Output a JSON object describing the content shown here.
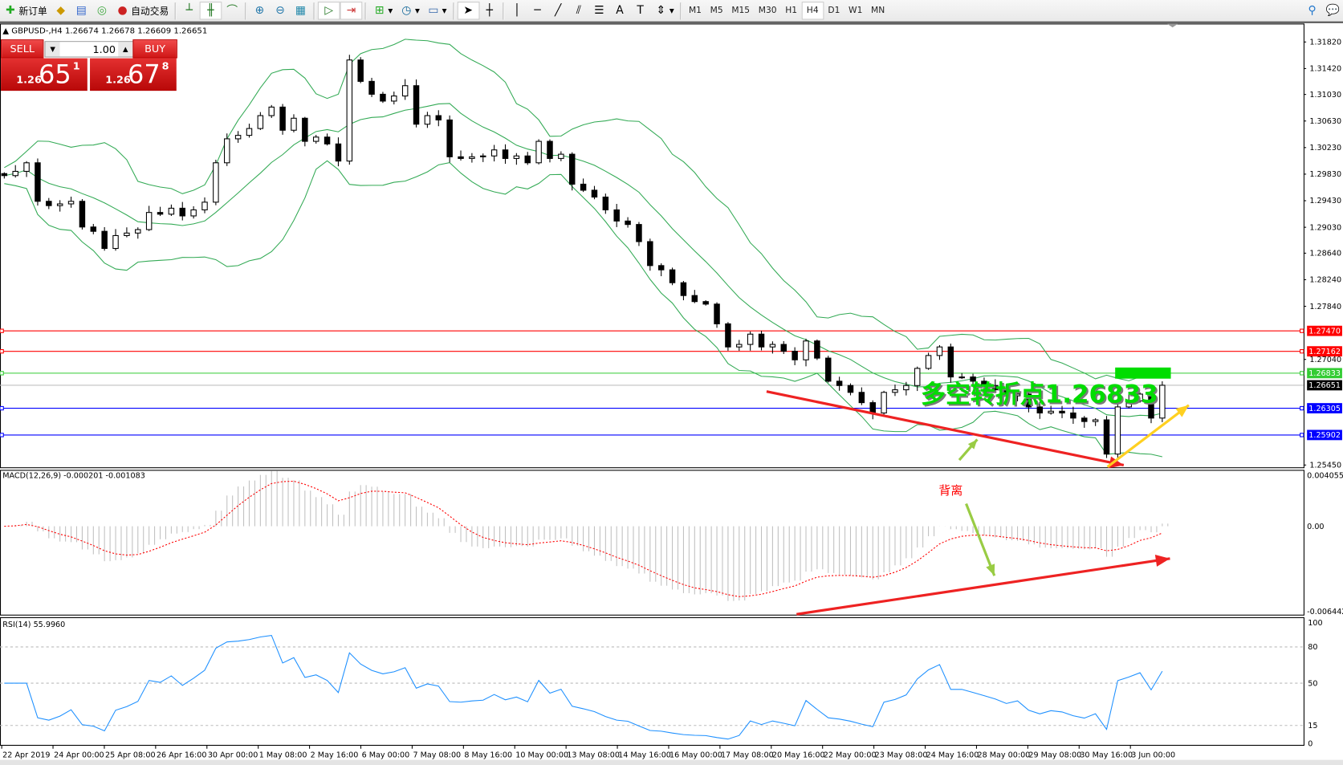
{
  "toolbar": {
    "new_order": "新订单",
    "auto_trading": "自动交易",
    "timeframes": [
      "M1",
      "M5",
      "M15",
      "M30",
      "H1",
      "H4",
      "D1",
      "W1",
      "MN"
    ],
    "active_timeframe": "H4"
  },
  "chart": {
    "info": "GBPUSD-,H4  1.26674 1.26678 1.26609 1.26651",
    "symbol": "GBPUSD-",
    "period": "H4"
  },
  "trade_panel": {
    "sell_label": "SELL",
    "buy_label": "BUY",
    "lot": "1.00",
    "bid_prefix": "1.26",
    "bid_big": "65",
    "bid_sup": "1",
    "ask_prefix": "1.26",
    "ask_big": "67",
    "ask_sup": "8"
  },
  "price_axis": {
    "range": [
      1.25409,
      1.32091
    ],
    "labels": [
      "1.31820",
      "1.31420",
      "1.31030",
      "1.30630",
      "1.30230",
      "1.29830",
      "1.29430",
      "1.29030",
      "1.28640",
      "1.28240",
      "1.27840",
      "1.27040",
      "1.25450"
    ]
  },
  "levels": [
    {
      "price": "1.27470",
      "color": "#ff0000"
    },
    {
      "price": "1.27162",
      "color": "#ff0000"
    },
    {
      "price": "1.26833",
      "color": "#33cc33"
    },
    {
      "price": "1.26651",
      "color": "#c0c0c0",
      "tag_color": "#000000"
    },
    {
      "price": "1.26305",
      "color": "#0000ff"
    },
    {
      "price": "1.25902",
      "color": "#0000ff"
    }
  ],
  "closes": [
    1.29808,
    1.29872,
    1.30001,
    1.29421,
    1.29356,
    1.29382,
    1.29421,
    1.29034,
    1.28969,
    1.28711,
    1.28905,
    1.28943,
    1.28995,
    1.29253,
    1.29227,
    1.29317,
    1.29201,
    1.29292,
    1.29408,
    1.30001,
    1.30362,
    1.30414,
    1.30517,
    1.30711,
    1.3084,
    1.30491,
    1.30672,
    1.30324,
    1.30388,
    1.30285,
    1.30027,
    1.31549,
    1.31227,
    1.31033,
    1.3093,
    1.31007,
    1.31162,
    1.30582,
    1.30711,
    1.30646,
    1.30091,
    1.30066,
    1.30091,
    1.30104,
    1.30195,
    1.30066,
    1.30104,
    1.30001,
    1.30324,
    1.30066,
    1.3013,
    1.29679,
    1.29588,
    1.29485,
    1.29292,
    1.29124,
    1.29072,
    1.28814,
    1.28453,
    1.28389,
    1.28195,
    1.28002,
    1.27911,
    1.27873,
    1.27576,
    1.27228,
    1.27266,
    1.27421,
    1.27228,
    1.27266,
    1.27163,
    1.27034,
    1.27318,
    1.2706,
    1.26712,
    1.26647,
    1.26544,
    1.26389,
    1.26234,
    1.26544,
    1.26583,
    1.26647,
    1.26905,
    1.27099,
    1.27228,
    1.26776,
    1.26776,
    1.26712,
    1.26647,
    1.26583,
    1.26492,
    1.26518,
    1.26325,
    1.26234,
    1.2626,
    1.26234,
    1.26157,
    1.26105,
    1.2613,
    1.25615,
    1.26325,
    1.26415,
    1.26518,
    1.26157,
    1.26651
  ],
  "annotations": {
    "pivot_text": "多空转折点1.26833",
    "pivot_color": "#00dd00",
    "divergence_text": "背离",
    "divergence_color": "#ff0000"
  },
  "macd": {
    "label": "MACD(12,26,9) -0.000201 -0.001083",
    "range": [
      -0.006442,
      0.004055
    ],
    "axis_labels": [
      "0.004055",
      "0.00",
      "-0.006442"
    ]
  },
  "rsi": {
    "label": "RSI(14) 55.9960",
    "axis_labels": [
      "100",
      "80",
      "50",
      "15",
      "0"
    ]
  },
  "time_axis": [
    "22 Apr 2019",
    "24 Apr 00:00",
    "25 Apr 08:00",
    "26 Apr 16:00",
    "30 Apr 00:00",
    "1 May 08:00",
    "2 May 16:00",
    "6 May 00:00",
    "7 May 08:00",
    "8 May 16:00",
    "10 May 00:00",
    "13 May 08:00",
    "14 May 16:00",
    "16 May 00:00",
    "17 May 08:00",
    "20 May 16:00",
    "22 May 00:00",
    "23 May 08:00",
    "24 May 16:00",
    "28 May 00:00",
    "29 May 08:00",
    "30 May 16:00",
    "3 Jun 00:00"
  ]
}
